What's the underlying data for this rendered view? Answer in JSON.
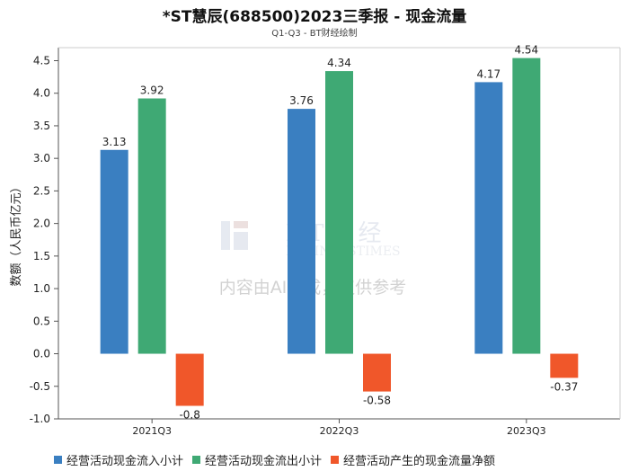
{
  "chart_data": {
    "type": "bar",
    "title": "*ST慧辰(688500)2023三季报 - 现金流量",
    "subtitle": "Q1-Q3 - BT财经绘制",
    "ylabel": "数额（人民币亿元）",
    "xlabel": "",
    "categories": [
      "2021Q3",
      "2022Q3",
      "2023Q3"
    ],
    "ylim": [
      -1.0,
      4.7
    ],
    "yticks": [
      "-1.0",
      "-0.5",
      "0.0",
      "0.5",
      "1.0",
      "1.5",
      "2.0",
      "2.5",
      "3.0",
      "3.5",
      "4.0",
      "4.5"
    ],
    "series": [
      {
        "name": "经营活动现金流入小计",
        "color": "#3a7fc1",
        "values": [
          3.13,
          3.76,
          4.17
        ],
        "labels": [
          "3.13",
          "3.76",
          "4.17"
        ]
      },
      {
        "name": "经营活动现金流出小计",
        "color": "#3fa974",
        "values": [
          3.92,
          4.34,
          4.54
        ],
        "labels": [
          "3.92",
          "4.34",
          "4.54"
        ]
      },
      {
        "name": "经营活动产生的现金流量净额",
        "color": "#f0572a",
        "values": [
          -0.8,
          -0.58,
          -0.37
        ],
        "labels": [
          "-0.8",
          "-0.58",
          "-0.37"
        ]
      }
    ],
    "grid": false,
    "legend": "bottom"
  },
  "watermark": {
    "brand": "BT财经",
    "brand_en": "BUSINESSTIMES",
    "notice": "内容由AI生成，仅供参考"
  }
}
